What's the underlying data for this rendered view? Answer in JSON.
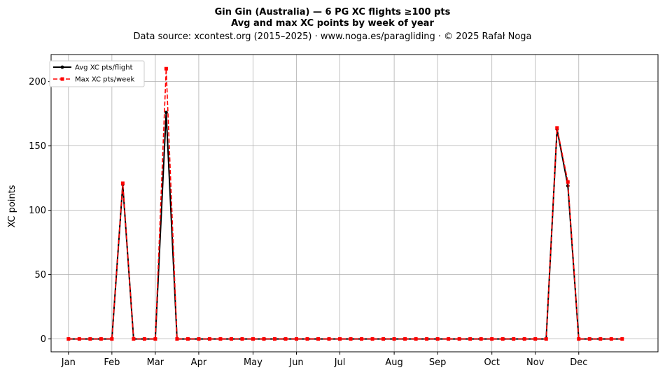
{
  "chart_data": {
    "type": "line",
    "title": "Gin Gin (Australia)  —  6 PG XC flights ≥100 pts",
    "subtitle": "Avg and max XC points by week of year",
    "source_line": "Data source: xcontest.org (2015–2025)  ·  www.noga.es/paragliding  ·  © 2025 Rafał Noga",
    "xlabel": "",
    "ylabel": "XC points",
    "ylim": [
      -10,
      221
    ],
    "xlim": [
      -1.6,
      54.3
    ],
    "yticks": [
      0,
      50,
      100,
      150,
      200
    ],
    "x_ticks": [
      {
        "label": "Jan",
        "week": 0
      },
      {
        "label": "Feb",
        "week": 4
      },
      {
        "label": "Mar",
        "week": 8
      },
      {
        "label": "Apr",
        "week": 12
      },
      {
        "label": "May",
        "week": 17
      },
      {
        "label": "Jun",
        "week": 21
      },
      {
        "label": "Jul",
        "week": 25
      },
      {
        "label": "Aug",
        "week": 30
      },
      {
        "label": "Sep",
        "week": 34
      },
      {
        "label": "Oct",
        "week": 39
      },
      {
        "label": "Nov",
        "week": 43
      },
      {
        "label": "Dec",
        "week": 47
      }
    ],
    "grid": true,
    "legend_position": "upper-left",
    "x": [
      0,
      1,
      2,
      3,
      4,
      5,
      6,
      7,
      8,
      9,
      10,
      11,
      12,
      13,
      14,
      15,
      16,
      17,
      18,
      19,
      20,
      21,
      22,
      23,
      24,
      25,
      26,
      27,
      28,
      29,
      30,
      31,
      32,
      33,
      34,
      35,
      36,
      37,
      38,
      39,
      40,
      41,
      42,
      43,
      44,
      45,
      46,
      47,
      48,
      49,
      50,
      51
    ],
    "series": [
      {
        "name": "Avg XC pts/flight",
        "color": "#000000",
        "style": "solid-circle",
        "values": [
          0,
          0,
          0,
          0,
          0,
          120,
          0,
          0,
          0,
          176,
          0,
          0,
          0,
          0,
          0,
          0,
          0,
          0,
          0,
          0,
          0,
          0,
          0,
          0,
          0,
          0,
          0,
          0,
          0,
          0,
          0,
          0,
          0,
          0,
          0,
          0,
          0,
          0,
          0,
          0,
          0,
          0,
          0,
          0,
          0,
          163,
          119,
          0,
          0,
          0,
          0,
          0
        ]
      },
      {
        "name": "Max XC pts/week",
        "color": "#ff0000",
        "style": "dashed-square",
        "values": [
          0,
          0,
          0,
          0,
          0,
          121,
          0,
          0,
          0,
          210,
          0,
          0,
          0,
          0,
          0,
          0,
          0,
          0,
          0,
          0,
          0,
          0,
          0,
          0,
          0,
          0,
          0,
          0,
          0,
          0,
          0,
          0,
          0,
          0,
          0,
          0,
          0,
          0,
          0,
          0,
          0,
          0,
          0,
          0,
          0,
          164,
          122,
          0,
          0,
          0,
          0,
          0
        ]
      }
    ]
  }
}
